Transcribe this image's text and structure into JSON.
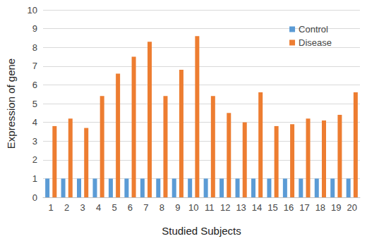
{
  "chart_data": {
    "type": "bar",
    "x_label": "Studied Subjects",
    "y_label": "Expression of gene",
    "categories": [
      "1",
      "2",
      "3",
      "4",
      "5",
      "6",
      "7",
      "8",
      "9",
      "10",
      "11",
      "12",
      "13",
      "14",
      "15",
      "16",
      "17",
      "18",
      "19",
      "20"
    ],
    "series": [
      {
        "name": "Control",
        "color": "#5b9bd5",
        "values": [
          1,
          1,
          1,
          1,
          1,
          1,
          1,
          1,
          1,
          1,
          1,
          1,
          1,
          1,
          1,
          1,
          1,
          1,
          1,
          1
        ]
      },
      {
        "name": "Disease",
        "color": "#ed7d31",
        "values": [
          3.8,
          4.2,
          3.7,
          5.4,
          6.6,
          7.5,
          8.3,
          5.4,
          6.8,
          8.6,
          5.4,
          4.5,
          4.0,
          5.6,
          3.8,
          3.9,
          4.2,
          4.1,
          4.4,
          5.6
        ]
      }
    ],
    "ylim": [
      0,
      10
    ],
    "yticks": [
      0,
      1,
      2,
      3,
      4,
      5,
      6,
      7,
      8,
      9,
      10
    ],
    "grid": true,
    "legend": "upper right"
  }
}
